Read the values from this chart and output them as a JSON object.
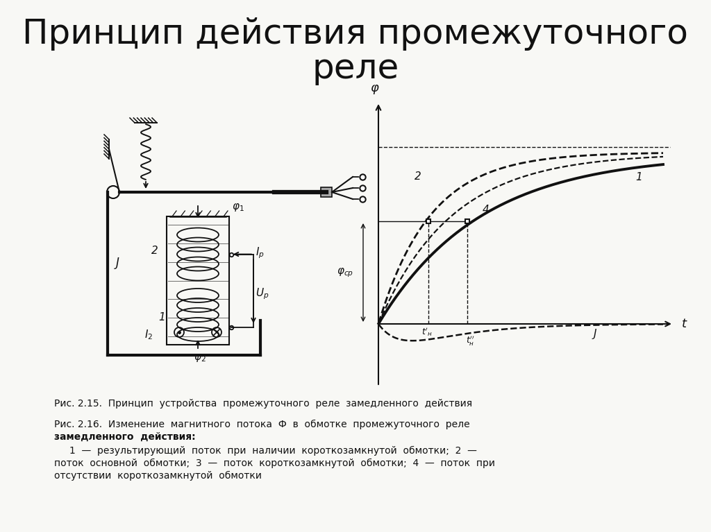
{
  "title_line1": "Принцип действия промежуточного",
  "title_line2": "реле",
  "title_fontsize": 36,
  "caption1": "Рис. 2.15.  Принцип  устройства  промежуточного  реле  замедленного  действия",
  "caption2_line1": "Рис. 2.16.  Изменение  магнитного  потока  Ф  в  обмотке  промежуточного  реле",
  "caption2_line2": "замедленного  действия:",
  "caption3_line1": "     1  —  результирующий  поток  при  наличии  короткозамкнутой  обмотки;  2  —",
  "caption3_line2": "поток  основной  обмотки;  3  —  поток  короткозамкнутой  обмотки;  4  —  поток  при",
  "caption3_line3": "отсутствии  короткозамкнутой  обмотки",
  "bg_color": "#f8f8f5",
  "line_color": "#111111"
}
